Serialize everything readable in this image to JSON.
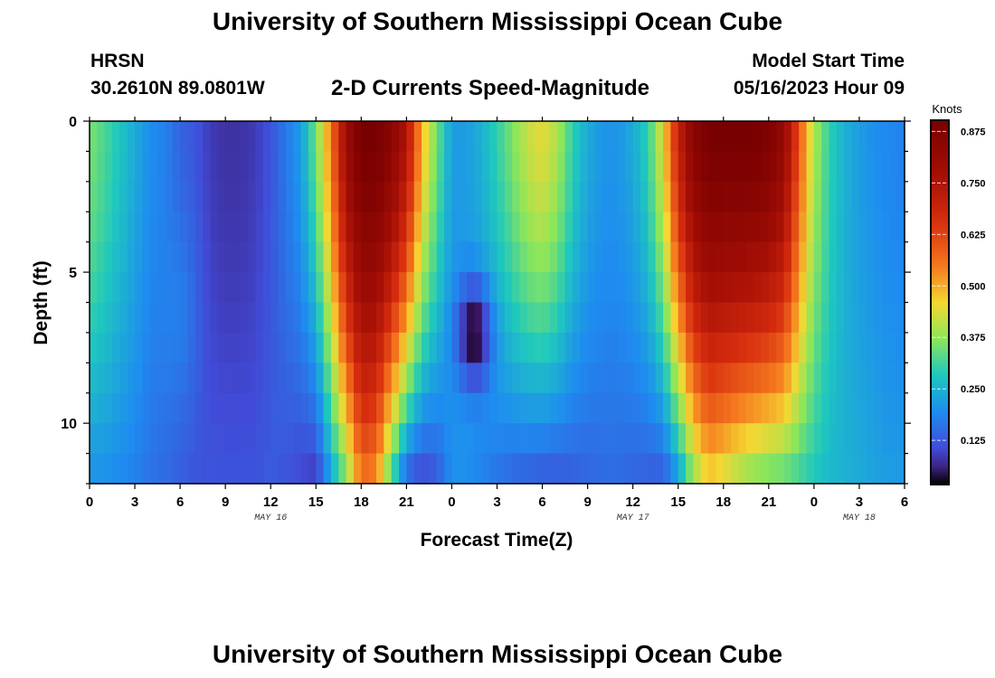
{
  "header": {
    "title": "University of Southern Mississippi Ocean Cube",
    "station": "HRSN",
    "coordinates": "30.2610N  89.0801W",
    "product": "2-D Currents Speed-Magnitude",
    "model_start_label": "Model Start Time",
    "model_start_value": "05/16/2023 Hour 09",
    "footer_title": "University of Southern Mississippi Ocean Cube"
  },
  "colorbar": {
    "unit": "Knots",
    "ticks": [
      {
        "value": 0.125,
        "label": "0.125"
      },
      {
        "value": 0.25,
        "label": "0.250"
      },
      {
        "value": 0.375,
        "label": "0.375"
      },
      {
        "value": 0.5,
        "label": "0.500"
      },
      {
        "value": 0.625,
        "label": "0.625"
      },
      {
        "value": 0.75,
        "label": "0.750"
      },
      {
        "value": 0.875,
        "label": "0.875"
      }
    ],
    "range": [
      0.02,
      0.9
    ]
  },
  "chart_data": {
    "type": "heatmap",
    "title": "2-D Currents Speed-Magnitude",
    "xlabel": "Forecast Time(Z)",
    "ylabel": "Depth (ft)",
    "x_range_hours": [
      0,
      54
    ],
    "y_range_ft": [
      0,
      12
    ],
    "x_ticks": [
      {
        "h": 0,
        "label": "0"
      },
      {
        "h": 3,
        "label": "3"
      },
      {
        "h": 6,
        "label": "6"
      },
      {
        "h": 9,
        "label": "9"
      },
      {
        "h": 12,
        "label": "12"
      },
      {
        "h": 15,
        "label": "15"
      },
      {
        "h": 18,
        "label": "18"
      },
      {
        "h": 21,
        "label": "21"
      },
      {
        "h": 24,
        "label": "0"
      },
      {
        "h": 27,
        "label": "3"
      },
      {
        "h": 30,
        "label": "6"
      },
      {
        "h": 33,
        "label": "9"
      },
      {
        "h": 36,
        "label": "12"
      },
      {
        "h": 39,
        "label": "15"
      },
      {
        "h": 42,
        "label": "18"
      },
      {
        "h": 45,
        "label": "21"
      },
      {
        "h": 48,
        "label": "0"
      },
      {
        "h": 51,
        "label": "3"
      },
      {
        "h": 54,
        "label": "6"
      }
    ],
    "y_ticks": [
      {
        "v": 0,
        "label": "0"
      },
      {
        "v": 5,
        "label": "5"
      },
      {
        "v": 10,
        "label": "10"
      }
    ],
    "date_labels": [
      {
        "h": 12,
        "label": "MAY 16"
      },
      {
        "h": 36,
        "label": "MAY 17"
      },
      {
        "h": 51,
        "label": "MAY 18"
      }
    ],
    "depth_levels_ft": [
      0,
      1,
      2,
      3,
      4,
      5,
      6,
      7,
      8,
      9,
      10,
      11,
      12
    ],
    "time_steps": [
      0,
      1,
      2,
      3,
      4,
      5,
      6,
      7,
      8,
      9,
      10,
      11,
      12,
      13,
      14,
      15,
      16,
      17,
      18,
      19,
      20,
      21,
      22,
      23,
      24,
      25,
      26,
      27,
      28,
      29,
      30,
      31,
      32,
      33,
      34,
      35,
      36,
      37,
      38,
      39,
      40,
      41,
      42,
      43,
      44,
      45,
      46,
      47,
      48,
      49,
      50,
      51,
      52,
      53,
      54
    ],
    "speed_knots_at_surface": [
      0.36,
      0.32,
      0.28,
      0.24,
      0.2,
      0.18,
      0.14,
      0.12,
      0.09,
      0.08,
      0.08,
      0.09,
      0.12,
      0.17,
      0.22,
      0.35,
      0.55,
      0.8,
      0.9,
      0.9,
      0.85,
      0.75,
      0.5,
      0.35,
      0.22,
      0.22,
      0.25,
      0.3,
      0.36,
      0.42,
      0.45,
      0.4,
      0.3,
      0.24,
      0.21,
      0.21,
      0.24,
      0.3,
      0.45,
      0.7,
      0.85,
      0.9,
      0.9,
      0.9,
      0.9,
      0.88,
      0.82,
      0.6,
      0.4,
      0.3,
      0.25,
      0.22,
      0.2,
      0.19,
      0.18
    ],
    "speed_knots_at_bottom": [
      0.2,
      0.2,
      0.19,
      0.18,
      0.16,
      0.15,
      0.13,
      0.12,
      0.12,
      0.12,
      0.12,
      0.12,
      0.13,
      0.12,
      0.1,
      0.08,
      0.22,
      0.35,
      0.55,
      0.52,
      0.3,
      0.12,
      0.09,
      0.12,
      0.2,
      0.2,
      0.18,
      0.16,
      0.14,
      0.13,
      0.12,
      0.12,
      0.13,
      0.14,
      0.15,
      0.15,
      0.14,
      0.13,
      0.12,
      0.2,
      0.36,
      0.45,
      0.42,
      0.38,
      0.35,
      0.33,
      0.32,
      0.3,
      0.28,
      0.26,
      0.25,
      0.24,
      0.23,
      0.22,
      0.22
    ],
    "peak_notes": "Strong flood/ebb cores near hours 16-22 and 40-46 reach ~0.9 knots; minimum ~0.02 knots near hour 25, depth 7 ft"
  }
}
